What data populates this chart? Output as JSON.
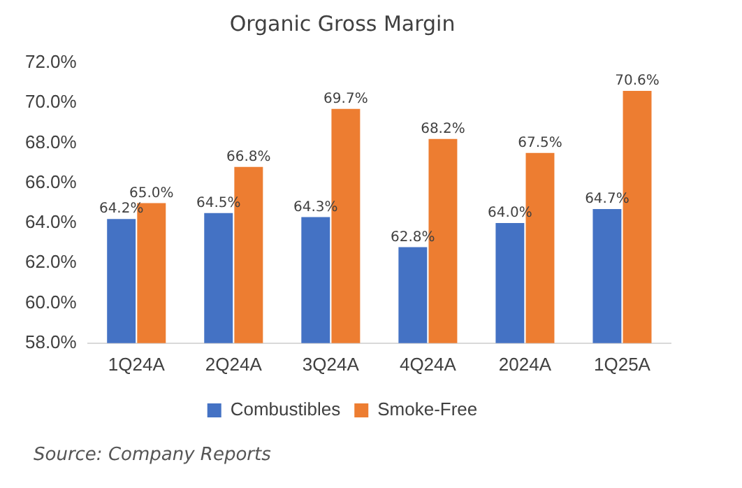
{
  "chart_data": {
    "type": "bar",
    "title": "Organic Gross Margin",
    "categories": [
      "1Q24A",
      "2Q24A",
      "3Q24A",
      "4Q24A",
      "2024A",
      "1Q25A"
    ],
    "series": [
      {
        "name": "Combustibles",
        "color": "#4472c4",
        "values": [
          64.2,
          64.5,
          64.3,
          62.8,
          64.0,
          64.7
        ],
        "value_labels": [
          "64.2%",
          "64.5%",
          "64.3%",
          "62.8%",
          "64.0%",
          "64.7%"
        ]
      },
      {
        "name": "Smoke-Free",
        "color": "#ed7d31",
        "values": [
          65.0,
          66.8,
          69.7,
          68.2,
          67.5,
          70.6
        ],
        "value_labels": [
          "65.0%",
          "66.8%",
          "69.7%",
          "68.2%",
          "67.5%",
          "70.6%"
        ]
      }
    ],
    "ylim": [
      58,
      72
    ],
    "yticks": [
      {
        "value": 58,
        "label": "58.0%"
      },
      {
        "value": 60,
        "label": "60.0%"
      },
      {
        "value": 62,
        "label": "62.0%"
      },
      {
        "value": 64,
        "label": "64.0%"
      },
      {
        "value": 66,
        "label": "66.0%"
      },
      {
        "value": 68,
        "label": "68.0%"
      },
      {
        "value": 70,
        "label": "70.0%"
      },
      {
        "value": 72,
        "label": "72.0%"
      }
    ],
    "grid": false,
    "legend": "bottom",
    "annotations": [
      "Source: Company Reports"
    ]
  }
}
